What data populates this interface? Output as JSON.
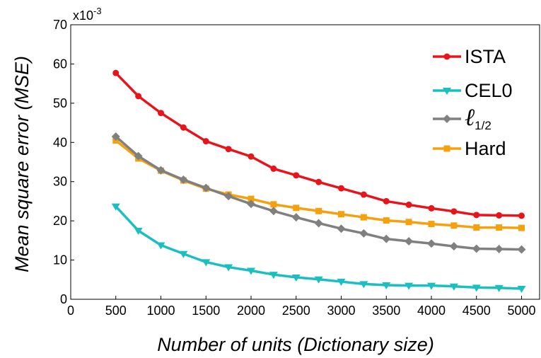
{
  "chart_data": {
    "type": "line",
    "xlabel": "Number of units (Dictionary size)",
    "ylabel": "Mean square error (MSE)",
    "y_scale_note": {
      "base": "x10",
      "exponent": "-3"
    },
    "xlim": [
      0,
      5200
    ],
    "ylim": [
      0,
      70
    ],
    "x_ticks": [
      0,
      500,
      1000,
      1500,
      2000,
      2500,
      3000,
      3500,
      4000,
      4500,
      5000
    ],
    "x_tick_labels": [
      "0",
      "500",
      "1000",
      "1500",
      "2000",
      "2500",
      "3000",
      "3500",
      "4000",
      "4500",
      "5000"
    ],
    "y_ticks": [
      0,
      10,
      20,
      30,
      40,
      50,
      60,
      70
    ],
    "y_tick_labels": [
      "0",
      "10",
      "20",
      "30",
      "40",
      "50",
      "60",
      "70"
    ],
    "grid": false,
    "legend_position": "top-right",
    "x": [
      500,
      750,
      1000,
      1250,
      1500,
      1750,
      2000,
      2250,
      2500,
      2750,
      3000,
      3250,
      3500,
      3750,
      4000,
      4250,
      4500,
      4750,
      5000
    ],
    "series": [
      {
        "name": "ISTA",
        "color": "#e8141c",
        "marker": "circle",
        "values": [
          57.7,
          51.8,
          47.5,
          43.8,
          40.3,
          38.3,
          36.4,
          33.3,
          31.6,
          29.9,
          28.3,
          26.7,
          25.0,
          24.1,
          23.2,
          22.4,
          21.5,
          21.4,
          21.3
        ]
      },
      {
        "name": "CEL0",
        "color": "#1bbfbf",
        "marker": "triangle-down",
        "values": [
          23.7,
          17.5,
          13.8,
          11.6,
          9.5,
          8.2,
          7.3,
          6.3,
          5.6,
          5.1,
          4.5,
          3.9,
          3.6,
          3.5,
          3.5,
          3.3,
          3.0,
          2.9,
          2.7
        ]
      },
      {
        "name": "ℓ",
        "name_subscript": "1/2",
        "color": "#808080",
        "marker": "diamond",
        "values": [
          41.5,
          36.5,
          32.9,
          30.5,
          28.4,
          26.3,
          24.3,
          22.5,
          20.9,
          19.4,
          18.0,
          16.8,
          15.4,
          14.8,
          14.2,
          13.5,
          12.9,
          12.8,
          12.7
        ]
      },
      {
        "name": "Hard",
        "color": "#f5a10f",
        "marker": "square",
        "values": [
          40.5,
          35.9,
          32.8,
          30.3,
          28.2,
          26.7,
          25.6,
          24.2,
          23.3,
          22.5,
          21.7,
          20.9,
          20.1,
          19.7,
          19.2,
          18.8,
          18.3,
          18.3,
          18.2
        ]
      }
    ]
  }
}
